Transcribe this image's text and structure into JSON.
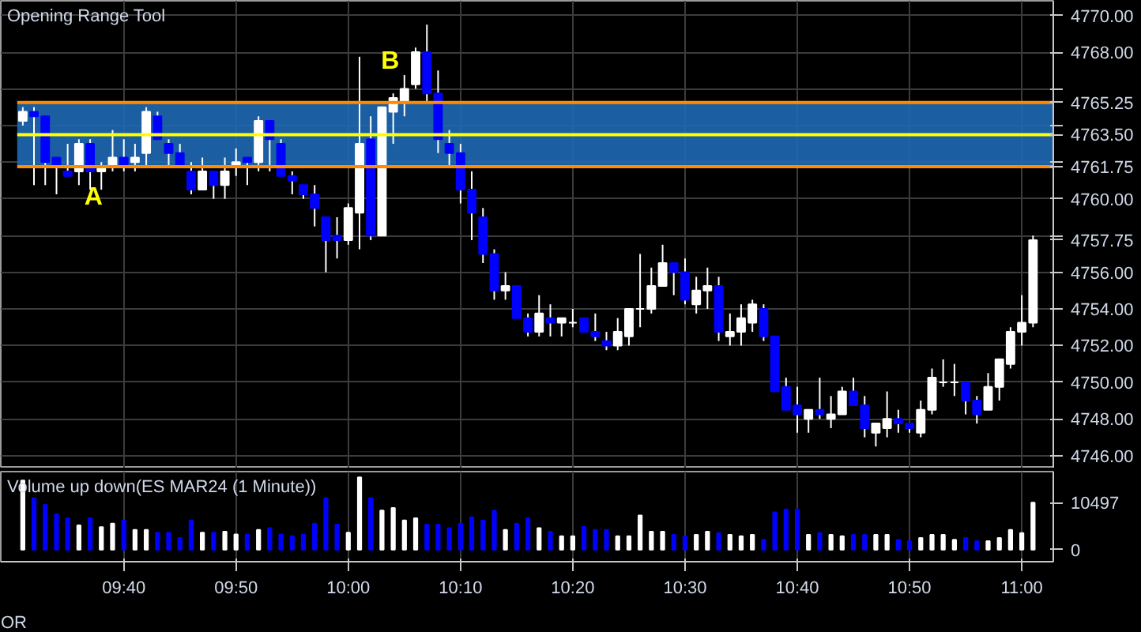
{
  "chart_data": [
    {
      "type": "candlestick",
      "title": "Opening Range Tool",
      "x": [
        9.5167,
        9.5333,
        9.55,
        9.5667,
        9.5833,
        9.6,
        9.6167,
        9.6333,
        9.65,
        9.6667,
        9.6833,
        9.7,
        9.7167,
        9.7333,
        9.75,
        9.7667,
        9.7833,
        9.8,
        9.8167,
        9.8333,
        9.85,
        9.8667,
        9.8833,
        9.9,
        9.9167,
        9.9333,
        9.95,
        9.9667,
        9.9833,
        10,
        10.0167,
        10.0333,
        10.05,
        10.0667,
        10.0833,
        10.1,
        10.1167,
        10.1333,
        10.15,
        10.1667,
        10.1833,
        10.2,
        10.2167,
        10.2333,
        10.25,
        10.2667,
        10.2833,
        10.3,
        10.3167,
        10.3333,
        10.35,
        10.3667,
        10.3833,
        10.4,
        10.4167,
        10.4333,
        10.45,
        10.4667,
        10.4833,
        10.5,
        10.5167,
        10.5333,
        10.55,
        10.5667,
        10.5833,
        10.6,
        10.6167,
        10.6333,
        10.65,
        10.6667,
        10.6833,
        10.7,
        10.7167,
        10.7333,
        10.75,
        10.7667,
        10.7833,
        10.8,
        10.8167,
        10.8333,
        10.85,
        10.8667,
        10.8833,
        10.9,
        10.9167,
        10.9333,
        10.95,
        10.9667,
        10.9833,
        11,
        11.0167
      ],
      "ohlc": [
        [
          4764.25,
          4765.0,
          4764.0,
          4764.75
        ],
        [
          4764.75,
          4765.0,
          4760.75,
          4764.5
        ],
        [
          4764.5,
          4764.5,
          4760.75,
          4762.0
        ],
        [
          4762.25,
          4762.25,
          4760.25,
          4761.75
        ],
        [
          4761.5,
          4763.0,
          4761.25,
          4761.25
        ],
        [
          4761.5,
          4763.25,
          4760.75,
          4763.0
        ],
        [
          4763.0,
          4763.25,
          4760.5,
          4761.5
        ],
        [
          4761.5,
          4762.0,
          4760.5,
          4761.75
        ],
        [
          4761.75,
          4763.75,
          4761.5,
          4762.25
        ],
        [
          4762.25,
          4763.25,
          4761.5,
          4761.75
        ],
        [
          4762.0,
          4763.0,
          4761.5,
          4762.25
        ],
        [
          4762.5,
          4765.0,
          4761.75,
          4764.75
        ],
        [
          4764.5,
          4764.75,
          4763.25,
          4763.25
        ],
        [
          4763.0,
          4763.25,
          4761.75,
          4762.5
        ],
        [
          4762.5,
          4763.0,
          4761.75,
          4761.75
        ],
        [
          4761.5,
          4762.0,
          4760.25,
          4760.5
        ],
        [
          4760.5,
          4762.25,
          4760.5,
          4761.5
        ],
        [
          4761.5,
          4761.5,
          4760.0,
          4760.75
        ],
        [
          4760.75,
          4762.25,
          4760.0,
          4761.5
        ],
        [
          4761.75,
          4762.75,
          4761.25,
          4762.0
        ],
        [
          4762.25,
          4762.25,
          4760.75,
          4762.0
        ],
        [
          4762.0,
          4764.5,
          4761.5,
          4764.25
        ],
        [
          4764.25,
          4764.25,
          4761.5,
          4763.25
        ],
        [
          4763.0,
          4763.25,
          4761.25,
          4761.25
        ],
        [
          4761.25,
          4761.5,
          4760.25,
          4761.0
        ],
        [
          4760.75,
          4760.75,
          4760.0,
          4760.25
        ],
        [
          4760.25,
          4760.75,
          4758.5,
          4759.5
        ],
        [
          4759.0,
          4759.0,
          4756.0,
          4757.75
        ],
        [
          4758.0,
          4759.0,
          4756.75,
          4757.75
        ],
        [
          4757.75,
          4759.75,
          4757.5,
          4759.5
        ],
        [
          4759.25,
          4767.75,
          4757.25,
          4763.0
        ],
        [
          4763.25,
          4764.5,
          4757.75,
          4758.0
        ],
        [
          4758.0,
          4765.0,
          4758.0,
          4765.0
        ],
        [
          4764.75,
          4765.75,
          4763.0,
          4765.5
        ],
        [
          4765.25,
          4766.75,
          4764.5,
          4766.0
        ],
        [
          4766.25,
          4768.25,
          4766.0,
          4768.0
        ],
        [
          4768.0,
          4769.5,
          4765.25,
          4765.75
        ],
        [
          4765.75,
          4767.0,
          4762.5,
          4763.25
        ],
        [
          4763.0,
          4763.75,
          4761.75,
          4762.5
        ],
        [
          4762.5,
          4763.0,
          4759.75,
          4760.5
        ],
        [
          4760.5,
          4761.5,
          4757.75,
          4759.25
        ],
        [
          4759.0,
          4759.5,
          4756.5,
          4757.0
        ],
        [
          4757.0,
          4757.25,
          4754.5,
          4755.0
        ],
        [
          4755.0,
          4756.0,
          4754.5,
          4755.25
        ],
        [
          4755.25,
          4755.25,
          4753.5,
          4753.5
        ],
        [
          4753.5,
          4753.75,
          4752.5,
          4752.75
        ],
        [
          4752.75,
          4754.75,
          4752.5,
          4753.75
        ],
        [
          4753.5,
          4754.25,
          4752.5,
          4753.25
        ],
        [
          4753.25,
          4753.5,
          4752.5,
          4753.5
        ],
        [
          4753.25,
          4754.0,
          4753.0,
          4753.25
        ],
        [
          4753.5,
          4753.5,
          4752.75,
          4752.75
        ],
        [
          4752.75,
          4753.75,
          4752.25,
          4752.5
        ],
        [
          4752.25,
          4752.75,
          4751.75,
          4752.0
        ],
        [
          4752.0,
          4753.5,
          4751.75,
          4752.75
        ],
        [
          4752.5,
          4754.0,
          4752.0,
          4754.0
        ],
        [
          4754.0,
          4757.0,
          4753.0,
          4754.0
        ],
        [
          4754.0,
          4756.25,
          4753.75,
          4755.25
        ],
        [
          4755.25,
          4757.5,
          4755.25,
          4756.5
        ],
        [
          4756.5,
          4756.5,
          4754.75,
          4756.0
        ],
        [
          4756.0,
          4756.75,
          4754.25,
          4754.5
        ],
        [
          4754.25,
          4755.75,
          4753.75,
          4755.0
        ],
        [
          4755.0,
          4756.25,
          4754.0,
          4755.25
        ],
        [
          4755.25,
          4755.75,
          4752.25,
          4752.75
        ],
        [
          4752.5,
          4753.75,
          4752.0,
          4752.75
        ],
        [
          4752.75,
          4754.25,
          4752.0,
          4753.5
        ],
        [
          4753.25,
          4754.5,
          4752.75,
          4754.25
        ],
        [
          4754.0,
          4754.25,
          4752.25,
          4752.5
        ],
        [
          4752.5,
          4752.5,
          4749.5,
          4749.5
        ],
        [
          4749.75,
          4750.25,
          4748.5,
          4748.5
        ],
        [
          4748.75,
          4749.75,
          4747.25,
          4748.25
        ],
        [
          4748.0,
          4748.5,
          4747.25,
          4748.5
        ],
        [
          4748.5,
          4750.25,
          4748.0,
          4748.25
        ],
        [
          4748.0,
          4749.25,
          4747.5,
          4748.25
        ],
        [
          4748.25,
          4749.75,
          4748.25,
          4749.5
        ],
        [
          4749.5,
          4750.25,
          4748.75,
          4748.75
        ],
        [
          4748.75,
          4749.25,
          4747.0,
          4747.5
        ],
        [
          4747.25,
          4747.75,
          4746.5,
          4747.75
        ],
        [
          4747.5,
          4749.5,
          4747.0,
          4748.0
        ],
        [
          4748.0,
          4748.5,
          4747.25,
          4747.75
        ],
        [
          4747.75,
          4747.75,
          4747.25,
          4747.5
        ],
        [
          4747.25,
          4749.0,
          4747.0,
          4748.5
        ],
        [
          4748.5,
          4750.75,
          4748.25,
          4750.25
        ],
        [
          4750.0,
          4751.25,
          4749.75,
          4750.0
        ],
        [
          4750.0,
          4751.0,
          4749.25,
          4750.0
        ],
        [
          4750.0,
          4750.0,
          4748.25,
          4749.0
        ],
        [
          4749.0,
          4749.25,
          4747.75,
          4748.25
        ],
        [
          4748.5,
          4750.5,
          4748.5,
          4749.75
        ],
        [
          4749.75,
          4751.25,
          4749.0,
          4751.25
        ],
        [
          4751.0,
          4753.0,
          4750.75,
          4752.75
        ],
        [
          4752.75,
          4754.75,
          4752.0,
          4753.25
        ],
        [
          4753.25,
          4758.0,
          4753.0,
          4757.75
        ]
      ],
      "colors": [
        "#ffffff",
        "#0000ff",
        "#0000ff",
        "#0000ff",
        "#0000ff",
        "#ffffff",
        "#0000ff",
        "#ffffff",
        "#ffffff",
        "#0000ff",
        "#ffffff",
        "#ffffff",
        "#0000ff",
        "#0000ff",
        "#0000ff",
        "#0000ff",
        "#ffffff",
        "#0000ff",
        "#ffffff",
        "#ffffff",
        "#0000ff",
        "#ffffff",
        "#0000ff",
        "#0000ff",
        "#0000ff",
        "#0000ff",
        "#0000ff",
        "#0000ff",
        "#0000ff",
        "#ffffff",
        "#ffffff",
        "#0000ff",
        "#ffffff",
        "#ffffff",
        "#ffffff",
        "#ffffff",
        "#0000ff",
        "#0000ff",
        "#0000ff",
        "#0000ff",
        "#0000ff",
        "#0000ff",
        "#0000ff",
        "#ffffff",
        "#0000ff",
        "#0000ff",
        "#ffffff",
        "#0000ff",
        "#ffffff",
        "#ffffff",
        "#0000ff",
        "#0000ff",
        "#0000ff",
        "#ffffff",
        "#ffffff",
        "#ffffff",
        "#ffffff",
        "#ffffff",
        "#0000ff",
        "#0000ff",
        "#ffffff",
        "#ffffff",
        "#0000ff",
        "#ffffff",
        "#ffffff",
        "#ffffff",
        "#0000ff",
        "#0000ff",
        "#0000ff",
        "#0000ff",
        "#ffffff",
        "#0000ff",
        "#ffffff",
        "#ffffff",
        "#0000ff",
        "#0000ff",
        "#ffffff",
        "#ffffff",
        "#0000ff",
        "#0000ff",
        "#ffffff",
        "#ffffff",
        "#ffffff",
        "#ffffff",
        "#0000ff",
        "#0000ff",
        "#ffffff",
        "#ffffff",
        "#ffffff",
        "#ffffff",
        "#ffffff"
      ],
      "value_labels": [
        null,
        null,
        null,
        null,
        null,
        null,
        null,
        null,
        null,
        null,
        null,
        null,
        null,
        null,
        null,
        null,
        null,
        null,
        null,
        null,
        null,
        null,
        null,
        null,
        null,
        null,
        null,
        null,
        null,
        null,
        null,
        null,
        null,
        null,
        null,
        null,
        null,
        null,
        null,
        null,
        null,
        null,
        null,
        null,
        null,
        null,
        null,
        null,
        null,
        null,
        null,
        null,
        null,
        null,
        null,
        null,
        null,
        null,
        null,
        null,
        null,
        null,
        null,
        null,
        null,
        null,
        null,
        null,
        null,
        null,
        null,
        null,
        null,
        null,
        null,
        null,
        null,
        null,
        null,
        null,
        null,
        null,
        null,
        null,
        null,
        null,
        null,
        null,
        null,
        null,
        "4757.75"
      ],
      "xlim": [
        9.484,
        11.0468
      ],
      "xticks": [
        {
          "value": 9.6667,
          "label": null
        },
        {
          "value": 9.8333,
          "label": null
        },
        {
          "value": 10,
          "label": null
        },
        {
          "value": 10.1667,
          "label": null
        },
        {
          "value": 10.3333,
          "label": null
        },
        {
          "value": 10.5,
          "label": null
        },
        {
          "value": 10.6667,
          "label": null
        },
        {
          "value": 10.8333,
          "label": null
        },
        {
          "value": 11,
          "label": null
        }
      ],
      "ylim": [
        4745.3,
        4770.8
      ],
      "yticks": [
        {
          "value": 4746,
          "label": "4746.00"
        },
        {
          "value": 4748,
          "label": "4748.00"
        },
        {
          "value": 4750,
          "label": "4750.00"
        },
        {
          "value": 4752,
          "label": "4752.00"
        },
        {
          "value": 4754,
          "label": "4754.00"
        },
        {
          "value": 4756,
          "label": "4756.00"
        },
        {
          "value": 4758,
          "label": null
        },
        {
          "value": 4760,
          "label": "4760.00"
        },
        {
          "value": 4762,
          "label": null
        },
        {
          "value": 4764,
          "label": null
        },
        {
          "value": 4766,
          "label": null
        },
        {
          "value": 4768,
          "label": "4768.00"
        },
        {
          "value": 4770,
          "label": "4770.00"
        }
      ],
      "tick_labels": "y",
      "grid": true,
      "ref_lines": [
        {
          "axis": "y",
          "value": 4765.25,
          "label": "4765.25",
          "color": "#ff8c00"
        },
        {
          "axis": "y",
          "value": 4763.5,
          "label": "4763.50",
          "color": "#ffff00"
        },
        {
          "axis": "y",
          "value": 4761.75,
          "label": "4761.75",
          "color": "#ff8c00"
        }
      ],
      "bands": [
        {
          "axis": "y",
          "from": 4761.75,
          "to": 4765.25,
          "color": "#1e69b4"
        }
      ],
      "annotations": [
        "A",
        "B"
      ]
    },
    {
      "type": "bar",
      "title": "Volume up down(ES MAR24 (1 Minute))",
      "x": [
        9.5167,
        9.5333,
        9.55,
        9.5667,
        9.5833,
        9.6,
        9.6167,
        9.6333,
        9.65,
        9.6667,
        9.6833,
        9.7,
        9.7167,
        9.7333,
        9.75,
        9.7667,
        9.7833,
        9.8,
        9.8167,
        9.8333,
        9.85,
        9.8667,
        9.8833,
        9.9,
        9.9167,
        9.9333,
        9.95,
        9.9667,
        9.9833,
        10,
        10.0167,
        10.0333,
        10.05,
        10.0667,
        10.0833,
        10.1,
        10.1167,
        10.1333,
        10.15,
        10.1667,
        10.1833,
        10.2,
        10.2167,
        10.2333,
        10.25,
        10.2667,
        10.2833,
        10.3,
        10.3167,
        10.3333,
        10.35,
        10.3667,
        10.3833,
        10.4,
        10.4167,
        10.4333,
        10.45,
        10.4667,
        10.4833,
        10.5,
        10.5167,
        10.5333,
        10.55,
        10.5667,
        10.5833,
        10.6,
        10.6167,
        10.6333,
        10.65,
        10.6667,
        10.6833,
        10.7,
        10.7167,
        10.7333,
        10.75,
        10.7667,
        10.7833,
        10.8,
        10.8167,
        10.8333,
        10.85,
        10.8667,
        10.8833,
        10.9,
        10.9167,
        10.9333,
        10.95,
        10.9667,
        10.9833,
        11,
        11.0167
      ],
      "values": [
        15400,
        11500,
        10000,
        7900,
        7000,
        5400,
        7000,
        5000,
        5800,
        6500,
        4400,
        4400,
        3800,
        3800,
        2600,
        6500,
        3800,
        3800,
        4000,
        3400,
        3400,
        4400,
        4800,
        3400,
        3000,
        3400,
        5800,
        11500,
        5600,
        3800,
        16100,
        11500,
        8700,
        9300,
        6500,
        7000,
        5600,
        5600,
        4800,
        5800,
        7200,
        6500,
        8700,
        4400,
        5800,
        7000,
        4800,
        4000,
        3000,
        3000,
        5100,
        4400,
        4400,
        3000,
        3000,
        7600,
        4000,
        4000,
        3300,
        3000,
        3300,
        4000,
        3700,
        3300,
        3000,
        3300,
        2200,
        8300,
        9000,
        9000,
        3300,
        3700,
        3300,
        3000,
        3300,
        3300,
        3300,
        3300,
        2200,
        1900,
        2600,
        3300,
        3300,
        2200,
        2600,
        1900,
        1900,
        2600,
        4400,
        3700,
        10497
      ],
      "colors": [
        "#ffffff",
        "#0000ff",
        "#0000ff",
        "#0000ff",
        "#0000ff",
        "#ffffff",
        "#0000ff",
        "#ffffff",
        "#ffffff",
        "#0000ff",
        "#ffffff",
        "#ffffff",
        "#0000ff",
        "#0000ff",
        "#0000ff",
        "#0000ff",
        "#ffffff",
        "#0000ff",
        "#ffffff",
        "#ffffff",
        "#0000ff",
        "#ffffff",
        "#0000ff",
        "#0000ff",
        "#0000ff",
        "#0000ff",
        "#0000ff",
        "#0000ff",
        "#0000ff",
        "#ffffff",
        "#ffffff",
        "#0000ff",
        "#ffffff",
        "#ffffff",
        "#ffffff",
        "#ffffff",
        "#0000ff",
        "#0000ff",
        "#0000ff",
        "#0000ff",
        "#0000ff",
        "#0000ff",
        "#0000ff",
        "#ffffff",
        "#0000ff",
        "#0000ff",
        "#ffffff",
        "#0000ff",
        "#ffffff",
        "#ffffff",
        "#0000ff",
        "#0000ff",
        "#0000ff",
        "#ffffff",
        "#ffffff",
        "#ffffff",
        "#ffffff",
        "#ffffff",
        "#0000ff",
        "#0000ff",
        "#ffffff",
        "#ffffff",
        "#0000ff",
        "#ffffff",
        "#ffffff",
        "#ffffff",
        "#0000ff",
        "#0000ff",
        "#0000ff",
        "#0000ff",
        "#ffffff",
        "#0000ff",
        "#ffffff",
        "#ffffff",
        "#0000ff",
        "#0000ff",
        "#ffffff",
        "#ffffff",
        "#0000ff",
        "#0000ff",
        "#ffffff",
        "#ffffff",
        "#ffffff",
        "#ffffff",
        "#0000ff",
        "#0000ff",
        "#ffffff",
        "#ffffff",
        "#ffffff",
        "#ffffff",
        "#ffffff"
      ],
      "value_labels": [
        null,
        null,
        null,
        null,
        null,
        null,
        null,
        null,
        null,
        null,
        null,
        null,
        null,
        null,
        null,
        null,
        null,
        null,
        null,
        null,
        null,
        null,
        null,
        null,
        null,
        null,
        null,
        null,
        null,
        null,
        null,
        null,
        null,
        null,
        null,
        null,
        null,
        null,
        null,
        null,
        null,
        null,
        null,
        null,
        null,
        null,
        null,
        null,
        null,
        null,
        null,
        null,
        null,
        null,
        null,
        null,
        null,
        null,
        null,
        null,
        null,
        null,
        null,
        null,
        null,
        null,
        null,
        null,
        null,
        null,
        null,
        null,
        null,
        null,
        null,
        null,
        null,
        null,
        null,
        null,
        null,
        null,
        null,
        null,
        null,
        null,
        null,
        null,
        null,
        null,
        null
      ],
      "xlim": [
        9.484,
        11.0468
      ],
      "xticks": [
        {
          "value": 9.6667,
          "label": "09:40"
        },
        {
          "value": 9.8333,
          "label": "09:50"
        },
        {
          "value": 10,
          "label": "10:00"
        },
        {
          "value": 10.1667,
          "label": "10:10"
        },
        {
          "value": 10.3333,
          "label": "10:20"
        },
        {
          "value": 10.5,
          "label": "10:30"
        },
        {
          "value": 10.6667,
          "label": "10:40"
        },
        {
          "value": 10.8333,
          "label": "10:50"
        },
        {
          "value": 11,
          "label": "11:00"
        }
      ],
      "ylim": [
        -2700,
        17400
      ],
      "yticks": [
        0,
        10497
      ],
      "grid": "x",
      "annotations": [
        "OR"
      ]
    }
  ]
}
